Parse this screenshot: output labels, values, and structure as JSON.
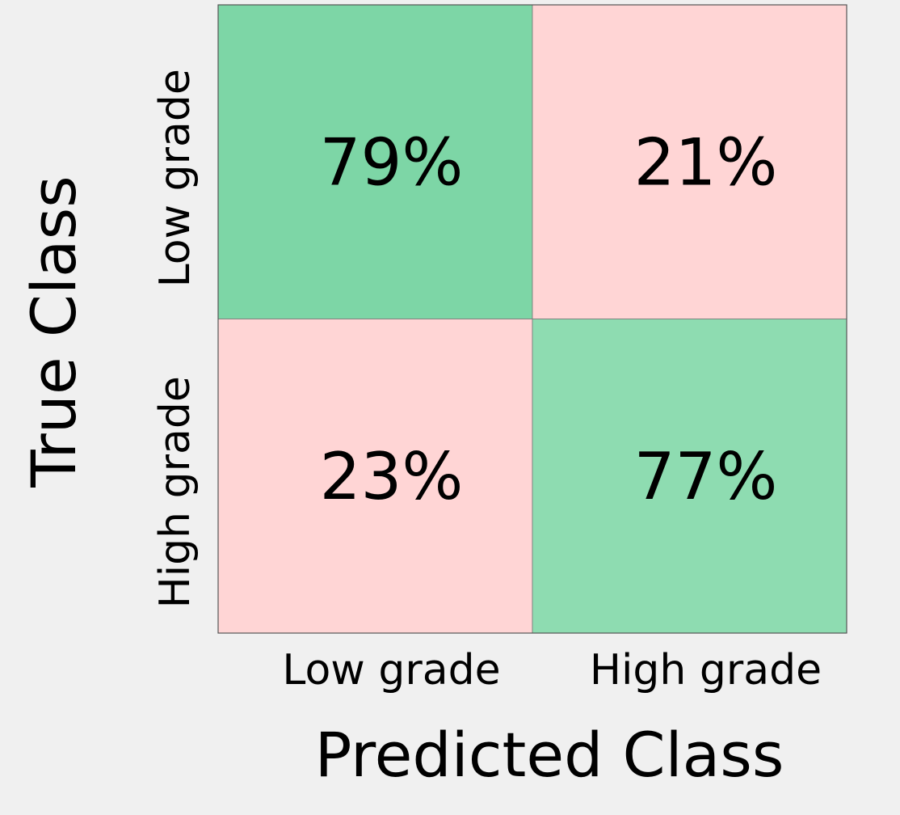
{
  "chart_data": {
    "type": "heatmap",
    "title": "",
    "xlabel": "Predicted Class",
    "ylabel": "True Class",
    "x_categories": [
      "Low grade",
      "High grade"
    ],
    "y_categories": [
      "Low grade",
      "High grade"
    ],
    "values": [
      [
        79,
        21
      ],
      [
        23,
        77
      ]
    ],
    "cell_labels": [
      [
        "79%",
        "21%"
      ],
      [
        "23%",
        "77%"
      ]
    ],
    "cell_colors": [
      [
        "#7dd6a6",
        "#ffd5d5"
      ],
      [
        "#ffd5d5",
        "#8edcb1"
      ]
    ],
    "value_unit": "%"
  }
}
